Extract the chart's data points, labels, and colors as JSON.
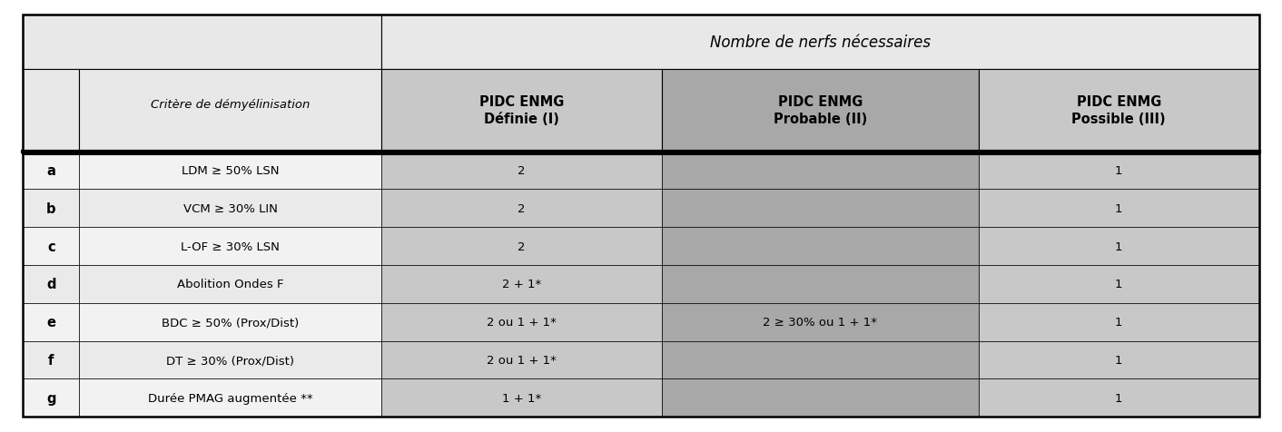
{
  "title": "Nombre de nerfs nécessaires",
  "col_headers": [
    "PIDC ENMG\nDéfinie (I)",
    "PIDC ENMG\nProbable (II)",
    "PIDC ENMG\nPossible (III)"
  ],
  "row_labels": [
    "a",
    "b",
    "c",
    "d",
    "e",
    "f",
    "g"
  ],
  "criteria": [
    "LDM ≥ 50% LSN",
    "VCM ≥ 30% LIN",
    "L-OF ≥ 30% LSN",
    "Abolition Ondes F",
    "BDC ≥ 50% (Prox/Dist)",
    "DT ≥ 30% (Prox/Dist)",
    "Durée PMAG augmentée **"
  ],
  "cell_data": [
    [
      "2",
      "",
      "1"
    ],
    [
      "2",
      "",
      "1"
    ],
    [
      "2",
      "",
      "1"
    ],
    [
      "2 + 1*",
      "",
      "1"
    ],
    [
      "2 ou 1 + 1*",
      "2 ≥ 30% ou 1 + 1*",
      "1"
    ],
    [
      "2 ou 1 + 1*",
      "",
      "1"
    ],
    [
      "1 + 1*",
      "",
      "1"
    ]
  ],
  "light_gray": "#e8e8e8",
  "header_gray": "#c8c8c8",
  "col2_gray": "#a8a8a8",
  "outer_bg": "#ffffff",
  "figsize": [
    14.12,
    4.77
  ],
  "dpi": 100
}
